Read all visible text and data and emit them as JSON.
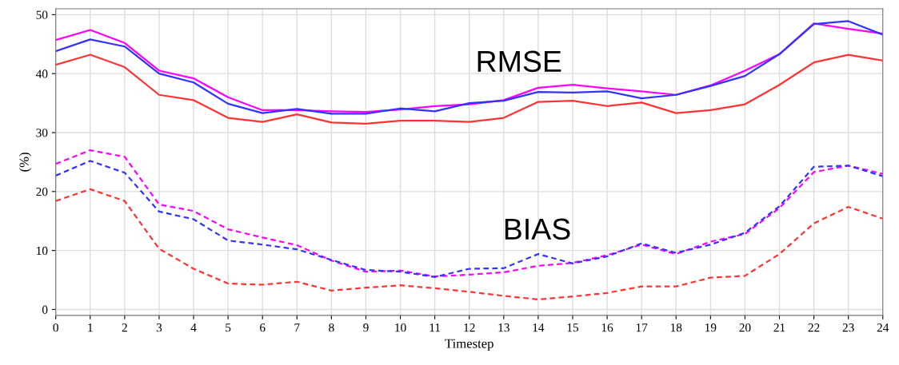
{
  "chart_data": {
    "type": "line",
    "xlabel": "Timestep",
    "ylabel": "(%)",
    "x": [
      0,
      1,
      2,
      3,
      4,
      5,
      6,
      7,
      8,
      9,
      10,
      11,
      12,
      13,
      14,
      15,
      16,
      17,
      18,
      19,
      20,
      21,
      22,
      23,
      24
    ],
    "xlim": [
      0,
      24
    ],
    "xticks": [
      0,
      1,
      2,
      3,
      4,
      5,
      6,
      7,
      8,
      9,
      10,
      11,
      12,
      13,
      14,
      15,
      16,
      17,
      18,
      19,
      20,
      21,
      22,
      23,
      24
    ],
    "ylim": [
      -1,
      51
    ],
    "yticks": [
      0,
      10,
      20,
      30,
      40,
      50
    ],
    "grid": true,
    "marker": "none",
    "series": [
      {
        "color": "#ff00ff",
        "line_style": "solid",
        "values": [
          45.7,
          47.4,
          45.2,
          40.5,
          39.2,
          36,
          33.8,
          33.8,
          33.6,
          33.5,
          33.9,
          34.5,
          34.8,
          35.5,
          37.6,
          38.1,
          37.5,
          37,
          36.4,
          38,
          40.5,
          43.3,
          48.5,
          47.6,
          46.8
        ]
      },
      {
        "color": "#3333ff",
        "line_style": "solid",
        "values": [
          43.8,
          45.8,
          44.6,
          40,
          38.5,
          34.9,
          33.3,
          34,
          33.2,
          33.2,
          34.1,
          33.6,
          35,
          35.4,
          36.9,
          36.8,
          37,
          35.8,
          36.4,
          37.9,
          39.6,
          43.3,
          48.4,
          48.9,
          46.6
        ]
      },
      {
        "color": "#ff3333",
        "line_style": "solid",
        "values": [
          41.5,
          43.2,
          41.1,
          36.4,
          35.5,
          32.5,
          31.8,
          33.1,
          31.7,
          31.5,
          32,
          32,
          31.8,
          32.5,
          35.2,
          35.4,
          34.5,
          35.1,
          33.3,
          33.8,
          34.8,
          38.1,
          41.9,
          43.2,
          42.2
        ]
      },
      {
        "color": "#ff00ff",
        "line_style": "dashed",
        "values": [
          24.7,
          27,
          25.9,
          17.8,
          16.7,
          13.6,
          12.2,
          10.9,
          8.3,
          6.4,
          6.6,
          5.6,
          5.9,
          6.3,
          7.4,
          7.9,
          9.2,
          11,
          9.4,
          11.5,
          12.8,
          17.2,
          23.3,
          24.4,
          23
        ]
      },
      {
        "color": "#3333ff",
        "line_style": "dashed",
        "values": [
          22.7,
          25.2,
          23.2,
          16.6,
          15.3,
          11.7,
          11,
          10.2,
          8.4,
          6.7,
          6.4,
          5.5,
          6.9,
          7,
          9.4,
          7.8,
          9,
          11.2,
          9.6,
          11,
          13,
          17.5,
          24.2,
          24.4,
          22.6
        ]
      },
      {
        "color": "#ff3333",
        "line_style": "dashed",
        "values": [
          18.4,
          20.4,
          18.4,
          10.3,
          6.9,
          4.4,
          4.2,
          4.7,
          3.2,
          3.7,
          4.1,
          3.6,
          3,
          2.3,
          1.7,
          2.2,
          2.8,
          3.9,
          3.9,
          5.4,
          5.7,
          9.4,
          14.6,
          17.4,
          15.4
        ]
      }
    ],
    "annotations": [
      "RMSE",
      "BIAS"
    ]
  }
}
